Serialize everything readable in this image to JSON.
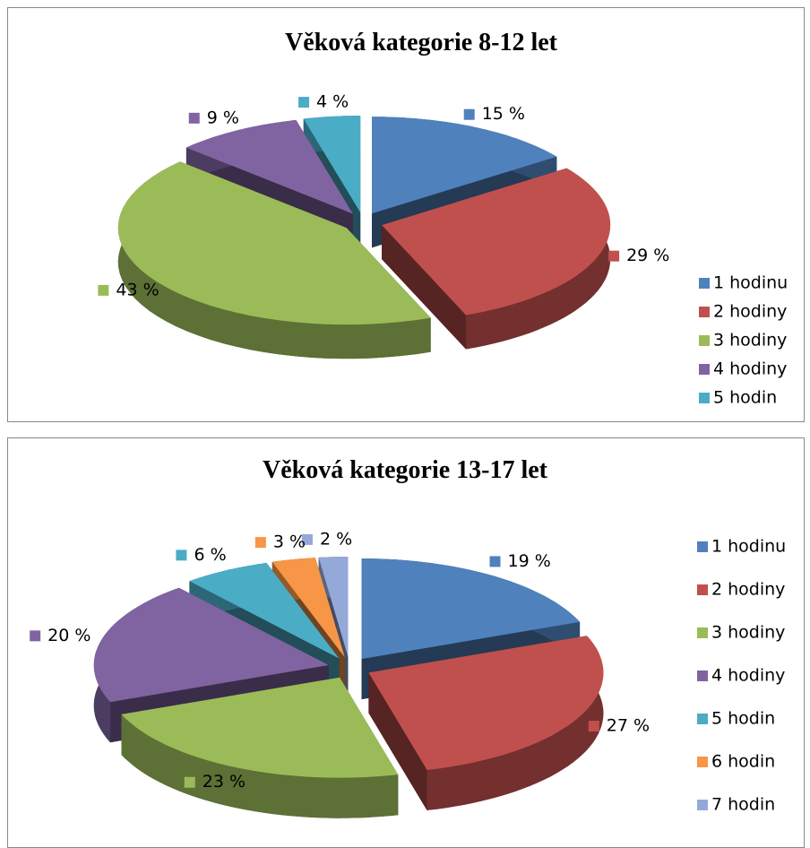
{
  "chart_data": [
    {
      "type": "pie",
      "title": "Věková kategorie 8-12 let",
      "categories": [
        "1 hodinu",
        "2 hodiny",
        "3 hodiny",
        "4 hodiny",
        "5 hodin"
      ],
      "values": [
        15,
        29,
        43,
        9,
        4
      ],
      "value_labels": [
        "15 %",
        "29 %",
        "43 %",
        "9 %",
        "4 %"
      ],
      "colors": [
        "#4f81bd",
        "#c0504d",
        "#9bbb59",
        "#8064a2",
        "#4bacc6"
      ],
      "legend": "right"
    },
    {
      "type": "pie",
      "title": "Věková kategorie 13-17 let",
      "categories": [
        "1 hodinu",
        "2 hodiny",
        "3 hodiny",
        "4 hodiny",
        "5 hodin",
        "6 hodin",
        "7 hodin"
      ],
      "values": [
        19,
        27,
        23,
        20,
        6,
        3,
        2
      ],
      "value_labels": [
        "19 %",
        "27 %",
        "23 %",
        "20 %",
        "6 %",
        "3 %",
        "2 %"
      ],
      "colors": [
        "#4f81bd",
        "#c0504d",
        "#9bbb59",
        "#8064a2",
        "#4bacc6",
        "#f79646",
        "#95a9d8"
      ],
      "legend": "right"
    }
  ]
}
